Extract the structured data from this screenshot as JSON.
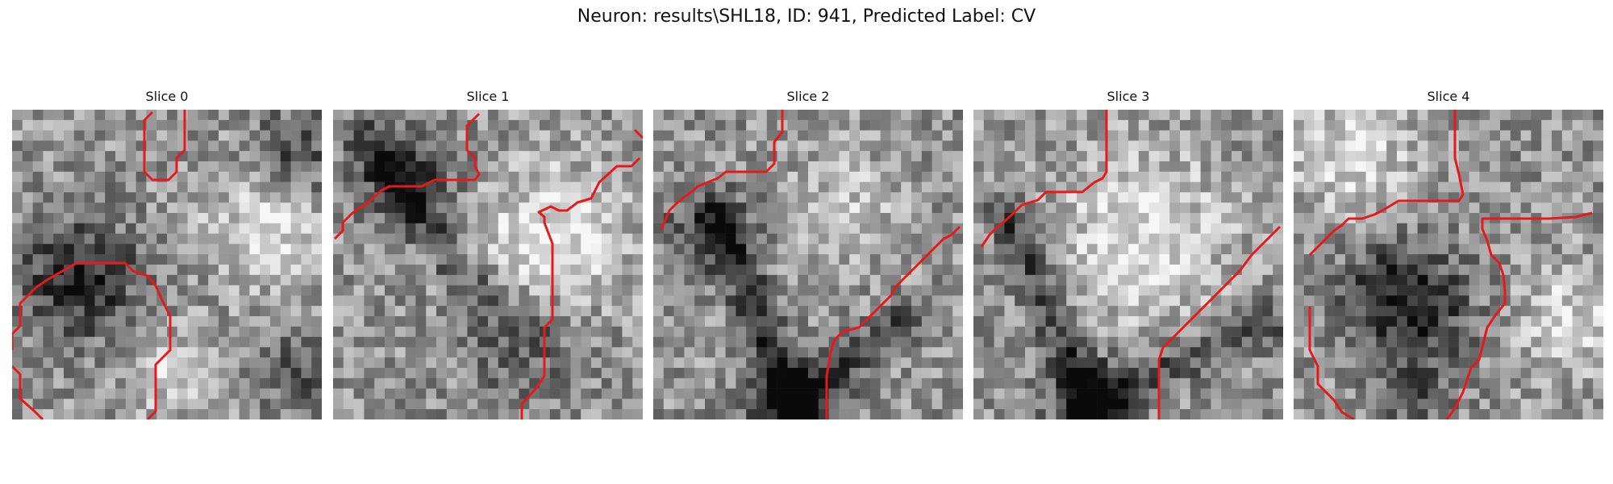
{
  "figure": {
    "title": "Neuron: results\\SHL18, ID: 941, Predicted Label: CV",
    "contour_color": "#e41a1c"
  },
  "panels": [
    {
      "label": "Slice 0"
    },
    {
      "label": "Slice 1"
    },
    {
      "label": "Slice 2"
    },
    {
      "label": "Slice 3"
    },
    {
      "label": "Slice 4"
    }
  ]
}
